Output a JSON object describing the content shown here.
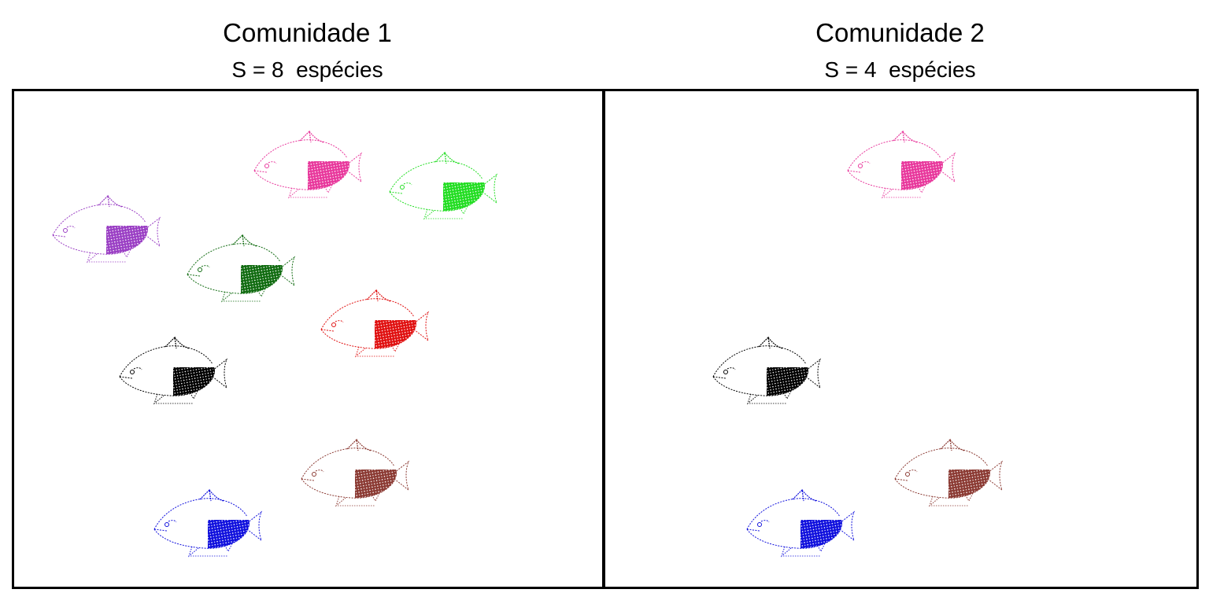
{
  "panels": [
    {
      "title": "Comunidade 1",
      "subtitle": "S = 8  espécies",
      "fish": [
        {
          "species": "pink",
          "color": "#e8389c"
        },
        {
          "species": "green",
          "color": "#22dd22"
        },
        {
          "species": "purple",
          "color": "#9a3fc4"
        },
        {
          "species": "darkgreen",
          "color": "#106b10"
        },
        {
          "species": "red",
          "color": "#e01010"
        },
        {
          "species": "black",
          "color": "#000000"
        },
        {
          "species": "brown",
          "color": "#8b3a33"
        },
        {
          "species": "blue",
          "color": "#1010dd"
        }
      ]
    },
    {
      "title": "Comunidade 2",
      "subtitle": "S = 4  espécies",
      "fish": [
        {
          "species": "pink",
          "color": "#e8389c"
        },
        {
          "species": "black",
          "color": "#000000"
        },
        {
          "species": "brown",
          "color": "#8b3a33"
        },
        {
          "species": "blue",
          "color": "#1010dd"
        }
      ]
    }
  ]
}
